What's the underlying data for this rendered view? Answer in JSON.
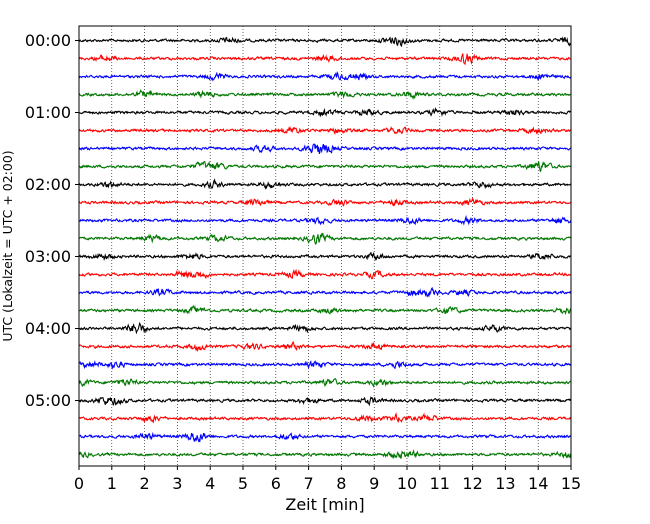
{
  "chart_data": {
    "type": "line",
    "title": "",
    "xlabel": "Zeit  [min]",
    "ylabel": "UTC (Lokalzeit = UTC + 02:00)",
    "xlim": [
      0,
      15
    ],
    "x_ticks": [
      0,
      1,
      2,
      3,
      4,
      5,
      6,
      7,
      8,
      9,
      10,
      11,
      12,
      13,
      14,
      15
    ],
    "x_tick_labels": [
      "0",
      "1",
      "2",
      "3",
      "4",
      "5",
      "6",
      "7",
      "8",
      "9",
      "10",
      "11",
      "12",
      "13",
      "14",
      "15"
    ],
    "y_tick_labels": [
      {
        "row": 0,
        "label": "00:00"
      },
      {
        "row": 4,
        "label": "01:00"
      },
      {
        "row": 8,
        "label": "02:00"
      },
      {
        "row": 12,
        "label": "03:00"
      },
      {
        "row": 16,
        "label": "04:00"
      },
      {
        "row": 20,
        "label": "05:00"
      }
    ],
    "row_interval_minutes": 15,
    "row_count": 24,
    "row_colors": [
      "#000000",
      "#ff0000",
      "#0000ff",
      "#007700"
    ],
    "vertical_grid": true,
    "grid_style": "dotted",
    "series_description": "helicorder traces, one per 15-minute interval, colors cycling black, red, blue, green"
  }
}
